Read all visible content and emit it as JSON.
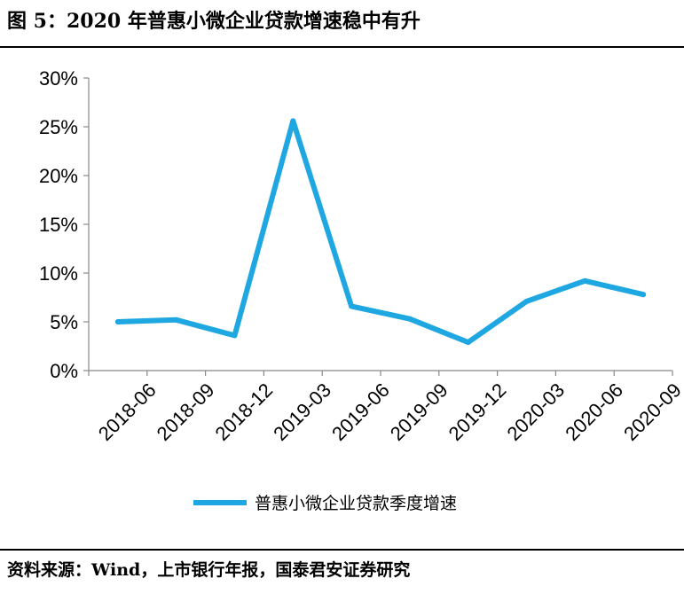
{
  "title": "图 5：2020 年普惠小微企业贷款增速稳中有升",
  "source": "资料来源：Wind，上市银行年报，国泰君安证券研究",
  "chart_data": {
    "type": "line",
    "categories": [
      "2018-06",
      "2018-09",
      "2018-12",
      "2019-03",
      "2019-06",
      "2019-09",
      "2019-12",
      "2020-03",
      "2020-06",
      "2020-09"
    ],
    "series": [
      {
        "name": "普惠小微企业贷款季度增速",
        "color": "#1ea7e1",
        "values": [
          5.0,
          5.2,
          3.6,
          25.6,
          6.6,
          5.3,
          2.9,
          7.1,
          9.2,
          7.8
        ]
      }
    ],
    "yticks": [
      "0%",
      "5%",
      "10%",
      "15%",
      "20%",
      "25%",
      "30%"
    ],
    "ylim": [
      0,
      30
    ],
    "legend": "bottom",
    "grid": false
  }
}
